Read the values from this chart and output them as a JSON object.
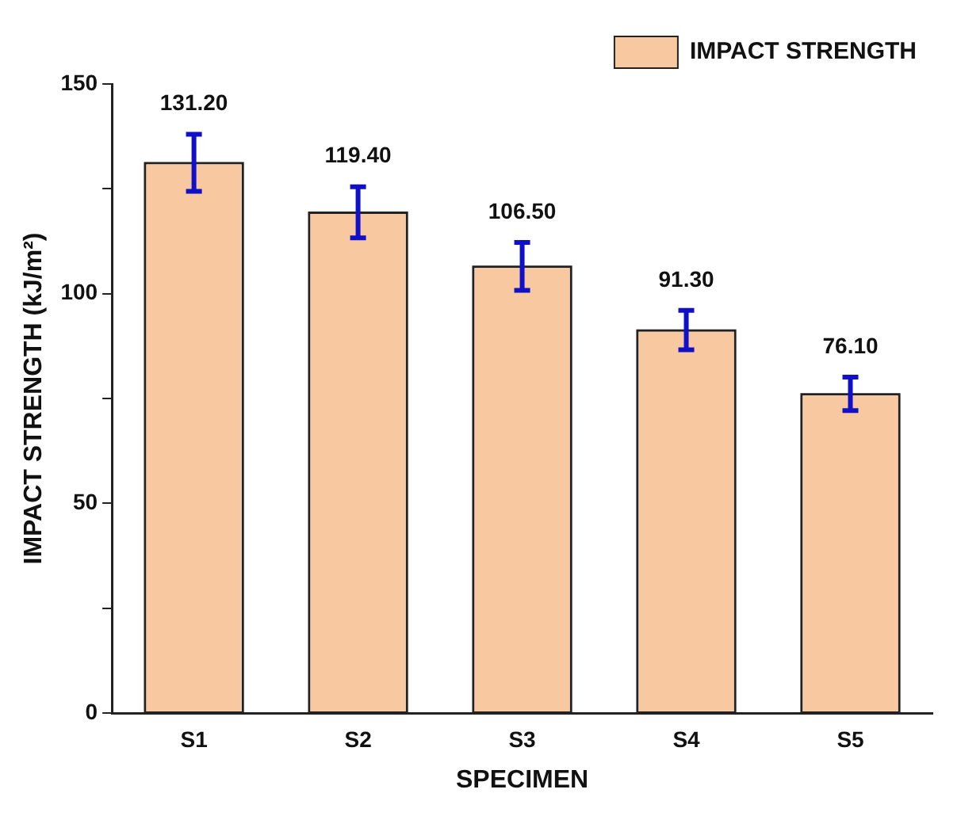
{
  "chart_data": {
    "type": "bar",
    "xlabel": "SPECIMEN",
    "ylabel": "IMPACT STRENGTH (kJ/m²)",
    "categories": [
      "S1",
      "S2",
      "S3",
      "S4",
      "S5"
    ],
    "series": [
      {
        "name": "IMPACT STRENGTH",
        "color": "#f8c8a0",
        "values": [
          131.2,
          119.4,
          106.5,
          91.3,
          76.1
        ],
        "errors": [
          6.8,
          6.1,
          5.7,
          4.7,
          4.0
        ],
        "value_labels": [
          "131.20",
          "119.40",
          "106.50",
          "91.30",
          "76.10"
        ]
      }
    ],
    "ylim": [
      0,
      150
    ],
    "yticks": [
      0,
      {
        "value": 25,
        "label": null
      },
      50,
      {
        "value": 75,
        "label": null
      },
      100,
      {
        "value": 125,
        "label": null
      },
      150
    ],
    "grid": false,
    "legend": "top right"
  }
}
